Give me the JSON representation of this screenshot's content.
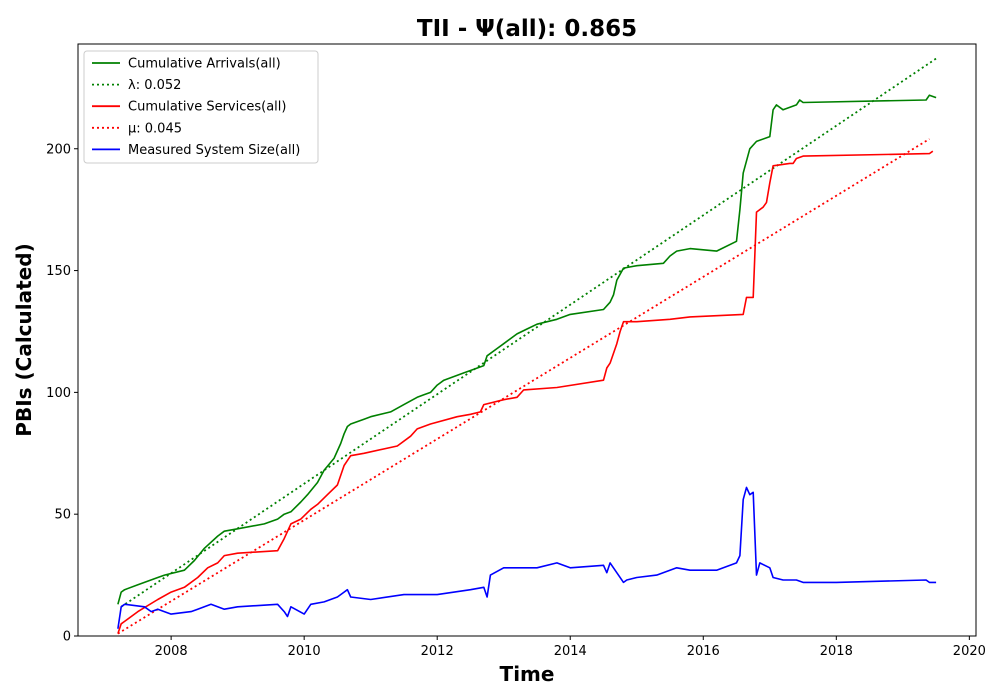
{
  "chart_data": {
    "type": "line",
    "title": "TII -  Ψ(all): 0.865",
    "xlabel": "Time",
    "ylabel": "PBIs (Calculated)",
    "xlim": [
      2006.6,
      2020.1
    ],
    "ylim": [
      0,
      243
    ],
    "x_ticks": [
      "2008",
      "2010",
      "2012",
      "2014",
      "2016",
      "2018",
      "2020"
    ],
    "y_ticks": [
      "0",
      "50",
      "100",
      "150",
      "200"
    ],
    "grid": false,
    "legend_position": "upper-left",
    "series": [
      {
        "name": "Cumulative Arrivals(all)",
        "color": "#008000",
        "style": "solid",
        "x": [
          2007.2,
          2007.25,
          2007.3,
          2007.5,
          2007.8,
          2007.9,
          2008.2,
          2008.35,
          2008.5,
          2008.7,
          2008.8,
          2009.0,
          2009.4,
          2009.6,
          2009.7,
          2009.8,
          2009.95,
          2010.05,
          2010.2,
          2010.3,
          2010.45,
          2010.55,
          2010.6,
          2010.65,
          2010.7,
          2010.9,
          2011.0,
          2011.3,
          2011.5,
          2011.7,
          2011.8,
          2011.9,
          2012.0,
          2012.1,
          2012.4,
          2012.5,
          2012.7,
          2012.75,
          2012.9,
          2013.0,
          2013.2,
          2013.35,
          2013.5,
          2013.8,
          2014.0,
          2014.5,
          2014.6,
          2014.65,
          2014.7,
          2014.8,
          2015.0,
          2015.4,
          2015.5,
          2015.6,
          2015.8,
          2016.2,
          2016.5,
          2016.55,
          2016.6,
          2016.65,
          2016.7,
          2016.8,
          2017.0,
          2017.05,
          2017.1,
          2017.2,
          2017.4,
          2017.45,
          2017.5,
          2019.35,
          2019.4,
          2019.5
        ],
        "y": [
          13,
          18,
          19,
          21,
          24,
          25,
          27,
          31,
          36,
          41,
          43,
          44,
          46,
          48,
          50,
          51,
          55,
          58,
          63,
          68,
          73,
          79,
          83,
          86,
          87,
          89,
          90,
          92,
          95,
          98,
          99,
          100,
          103,
          105,
          108,
          109,
          111,
          115,
          118,
          120,
          124,
          126,
          128,
          130,
          132,
          134,
          137,
          140,
          146,
          151,
          152,
          153,
          156,
          158,
          159,
          158,
          162,
          175,
          190,
          195,
          200,
          203,
          205,
          216,
          218,
          216,
          218,
          220,
          219,
          220,
          222,
          221
        ]
      },
      {
        "name": "λ: 0.052",
        "color": "#008000",
        "style": "dotted",
        "x": [
          2007.25,
          2019.5
        ],
        "y": [
          12,
          237
        ]
      },
      {
        "name": "Cumulative Services(all)",
        "color": "#ff0000",
        "style": "solid",
        "x": [
          2007.2,
          2007.25,
          2007.3,
          2007.5,
          2007.8,
          2008.0,
          2008.2,
          2008.4,
          2008.55,
          2008.7,
          2008.8,
          2009.0,
          2009.6,
          2009.7,
          2009.8,
          2009.95,
          2010.1,
          2010.2,
          2010.35,
          2010.5,
          2010.6,
          2010.65,
          2010.7,
          2010.9,
          2011.4,
          2011.6,
          2011.7,
          2011.9,
          2012.3,
          2012.5,
          2012.65,
          2012.7,
          2013.0,
          2013.2,
          2013.3,
          2013.8,
          2014.5,
          2014.55,
          2014.6,
          2014.7,
          2014.75,
          2014.8,
          2015.0,
          2015.5,
          2015.8,
          2016.6,
          2016.65,
          2016.7,
          2016.75,
          2016.8,
          2016.9,
          2016.95,
          2017.0,
          2017.05,
          2017.3,
          2017.35,
          2017.4,
          2017.5,
          2019.4,
          2019.45
        ],
        "y": [
          1,
          5,
          6,
          10,
          15,
          18,
          20,
          24,
          28,
          30,
          33,
          34,
          35,
          40,
          46,
          48,
          52,
          54,
          58,
          62,
          70,
          72,
          74,
          75,
          78,
          82,
          85,
          87,
          90,
          91,
          92,
          95,
          97,
          98,
          101,
          102,
          105,
          110,
          112,
          120,
          125,
          129,
          129,
          130,
          131,
          132,
          139,
          139,
          139,
          174,
          176,
          178,
          186,
          193,
          194,
          194,
          196,
          197,
          198,
          199
        ]
      },
      {
        "name": "μ: 0.045",
        "color": "#ff0000",
        "style": "dotted",
        "x": [
          2007.2,
          2019.4
        ],
        "y": [
          1,
          204
        ]
      },
      {
        "name": "Measured System Size(all)",
        "color": "#0000ff",
        "style": "solid",
        "x": [
          2007.2,
          2007.25,
          2007.3,
          2007.6,
          2007.7,
          2007.8,
          2008.0,
          2008.3,
          2008.4,
          2008.6,
          2008.8,
          2009.0,
          2009.6,
          2009.7,
          2009.75,
          2009.8,
          2010.0,
          2010.1,
          2010.3,
          2010.5,
          2010.6,
          2010.65,
          2010.7,
          2011.0,
          2011.5,
          2012.0,
          2012.5,
          2012.7,
          2012.75,
          2012.8,
          2013.0,
          2013.5,
          2013.8,
          2014.0,
          2014.5,
          2014.55,
          2014.6,
          2014.8,
          2014.85,
          2015.0,
          2015.3,
          2015.6,
          2015.8,
          2016.2,
          2016.5,
          2016.55,
          2016.6,
          2016.65,
          2016.7,
          2016.75,
          2016.8,
          2016.85,
          2017.0,
          2017.05,
          2017.2,
          2017.4,
          2017.5,
          2018.0,
          2019.35,
          2019.4,
          2019.5
        ],
        "y": [
          3,
          12,
          13,
          12,
          10,
          11,
          9,
          10,
          11,
          13,
          11,
          12,
          13,
          10,
          8,
          12,
          9,
          13,
          14,
          16,
          18,
          19,
          16,
          15,
          17,
          17,
          19,
          20,
          16,
          25,
          28,
          28,
          30,
          28,
          29,
          26,
          30,
          22,
          23,
          24,
          25,
          28,
          27,
          27,
          30,
          33,
          56,
          61,
          58,
          59,
          25,
          30,
          28,
          24,
          23,
          23,
          22,
          22,
          23,
          22,
          22
        ]
      }
    ]
  }
}
